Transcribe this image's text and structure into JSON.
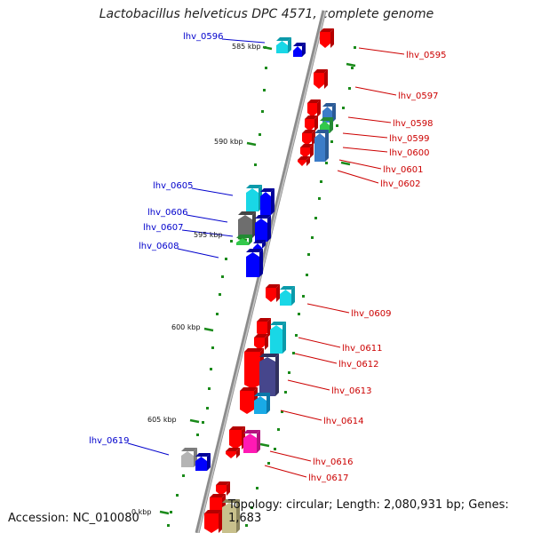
{
  "title": "Lactobacillus helveticus DPC 4571, complete genome",
  "footer": {
    "accession": "Accession: NC_010080",
    "topology": "Topology: circular; Length: 2,080,931 bp; Genes: 1,683"
  },
  "colors": {
    "forward": "#ff0000",
    "reverse": "#0000ff",
    "kbp_tick": "#1a8a1a",
    "backbone": "#8c8c8c"
  },
  "ruler": [
    {
      "label": "585 kbp"
    },
    {
      "label": "590 kbp"
    },
    {
      "label": "595 kbp"
    },
    {
      "label": "600 kbp"
    },
    {
      "label": "605 kbp"
    },
    {
      "label": "0 kbp"
    }
  ],
  "genes_left": [
    {
      "name": "lhv_0596"
    },
    {
      "name": "lhv_0605"
    },
    {
      "name": "lhv_0606"
    },
    {
      "name": "lhv_0607"
    },
    {
      "name": "lhv_0608"
    },
    {
      "name": "lhv_0619"
    }
  ],
  "genes_right": [
    {
      "name": "lhv_0595"
    },
    {
      "name": "lhv_0597"
    },
    {
      "name": "lhv_0598"
    },
    {
      "name": "lhv_0599"
    },
    {
      "name": "lhv_0600"
    },
    {
      "name": "lhv_0601"
    },
    {
      "name": "lhv_0602"
    },
    {
      "name": "lhv_0609"
    },
    {
      "name": "lhv_0611"
    },
    {
      "name": "lhv_0612"
    },
    {
      "name": "lhv_0613"
    },
    {
      "name": "lhv_0614"
    },
    {
      "name": "lhv_0616"
    },
    {
      "name": "lhv_0617"
    }
  ]
}
